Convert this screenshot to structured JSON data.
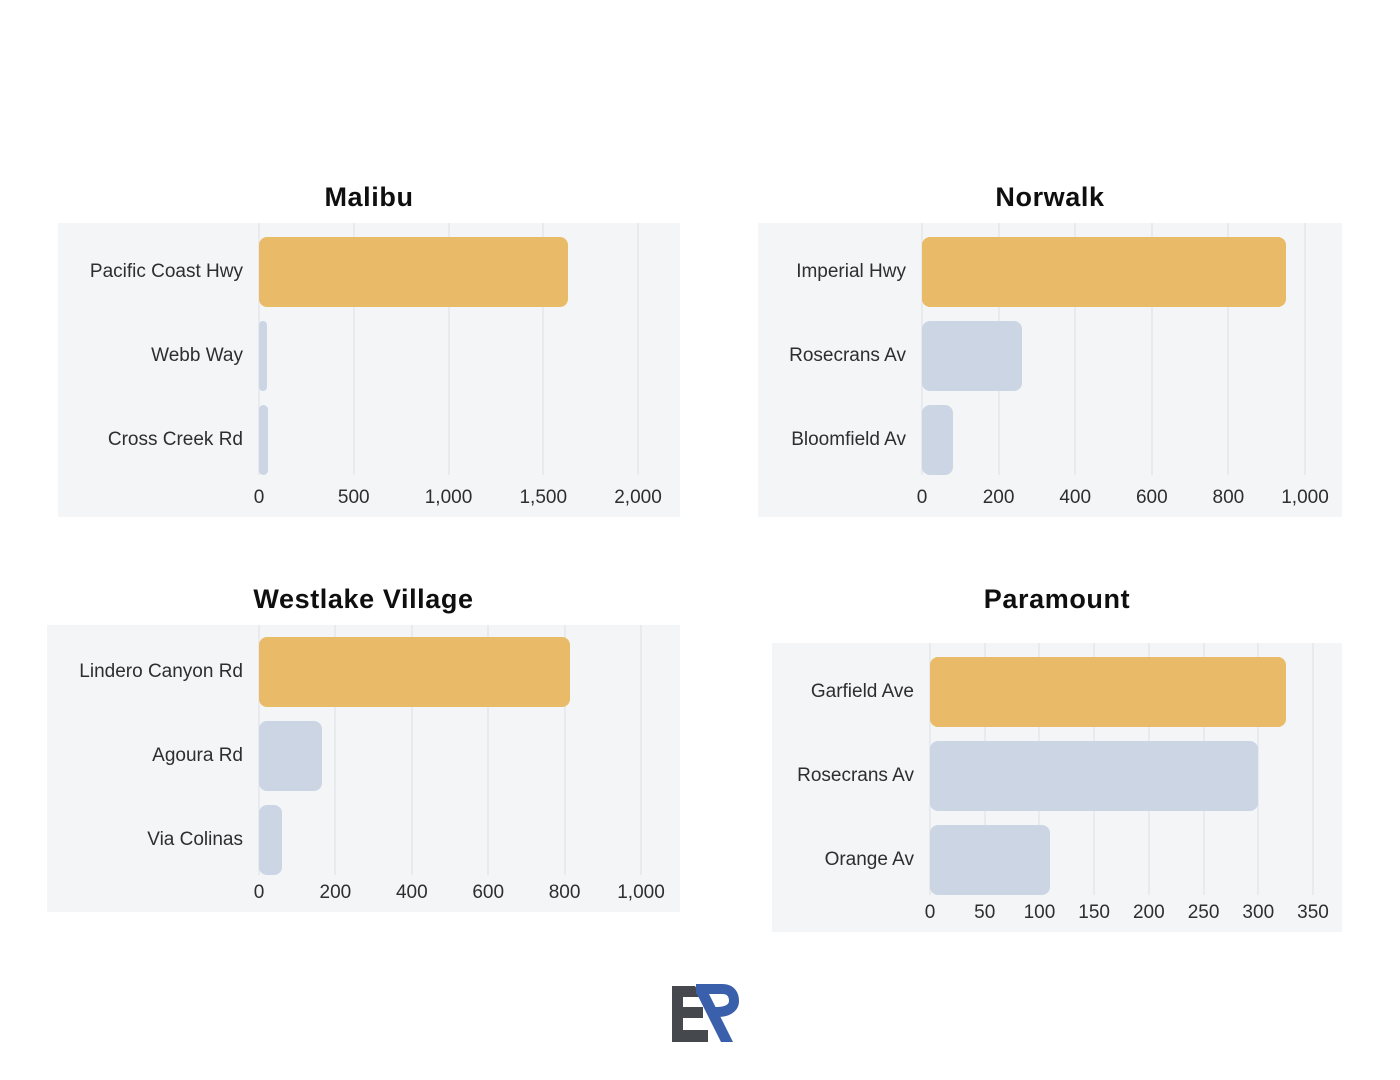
{
  "colors": {
    "highlight_bar": "#e9ba68",
    "base_bar": "#cbd5e4",
    "panel_background": "#f4f5f7",
    "gridline": "#dee0e5",
    "title_text": "#0f0f0f",
    "label_text": "#2e2e2e",
    "logo_e": "#45484d",
    "logo_r": "#3a5fab"
  },
  "logo": {
    "name": "ER monogram"
  },
  "chart_data": [
    {
      "type": "bar",
      "orientation": "horizontal",
      "title": "Malibu",
      "categories": [
        "Pacific Coast Hwy",
        "Webb Way",
        "Cross Creek Rd"
      ],
      "values": [
        1630,
        40,
        45
      ],
      "highlight_index": 0,
      "xlim": [
        0,
        2000
      ],
      "tick_values": [
        0,
        500,
        1000,
        1500,
        2000
      ],
      "tick_labels": [
        "0",
        "500",
        "1,000",
        "1,500",
        "2,000"
      ],
      "grid": "vertical"
    },
    {
      "type": "bar",
      "orientation": "horizontal",
      "title": "Norwalk",
      "categories": [
        "Imperial Hwy",
        "Rosecrans Av",
        "Bloomfield Av"
      ],
      "values": [
        950,
        260,
        80
      ],
      "highlight_index": 0,
      "xlim": [
        0,
        1000
      ],
      "tick_values": [
        0,
        200,
        400,
        600,
        800,
        1000
      ],
      "tick_labels": [
        "0",
        "200",
        "400",
        "600",
        "800",
        "1,000"
      ],
      "grid": "vertical"
    },
    {
      "type": "bar",
      "orientation": "horizontal",
      "title": "Westlake Village",
      "categories": [
        "Lindero Canyon Rd",
        "Agoura Rd",
        "Via Colinas"
      ],
      "values": [
        815,
        165,
        60
      ],
      "highlight_index": 0,
      "xlim": [
        0,
        1000
      ],
      "tick_values": [
        0,
        200,
        400,
        600,
        800,
        1000
      ],
      "tick_labels": [
        "0",
        "200",
        "400",
        "600",
        "800",
        "1,000"
      ],
      "grid": "vertical"
    },
    {
      "type": "bar",
      "orientation": "horizontal",
      "title": "Paramount",
      "categories": [
        "Garfield Ave",
        "Rosecrans Av",
        "Orange Av"
      ],
      "values": [
        325,
        300,
        110
      ],
      "highlight_index": 0,
      "xlim": [
        0,
        350
      ],
      "tick_values": [
        0,
        50,
        100,
        150,
        200,
        250,
        300,
        350
      ],
      "tick_labels": [
        "0",
        "50",
        "100",
        "150",
        "200",
        "250",
        "300",
        "350"
      ],
      "grid": "vertical"
    }
  ]
}
